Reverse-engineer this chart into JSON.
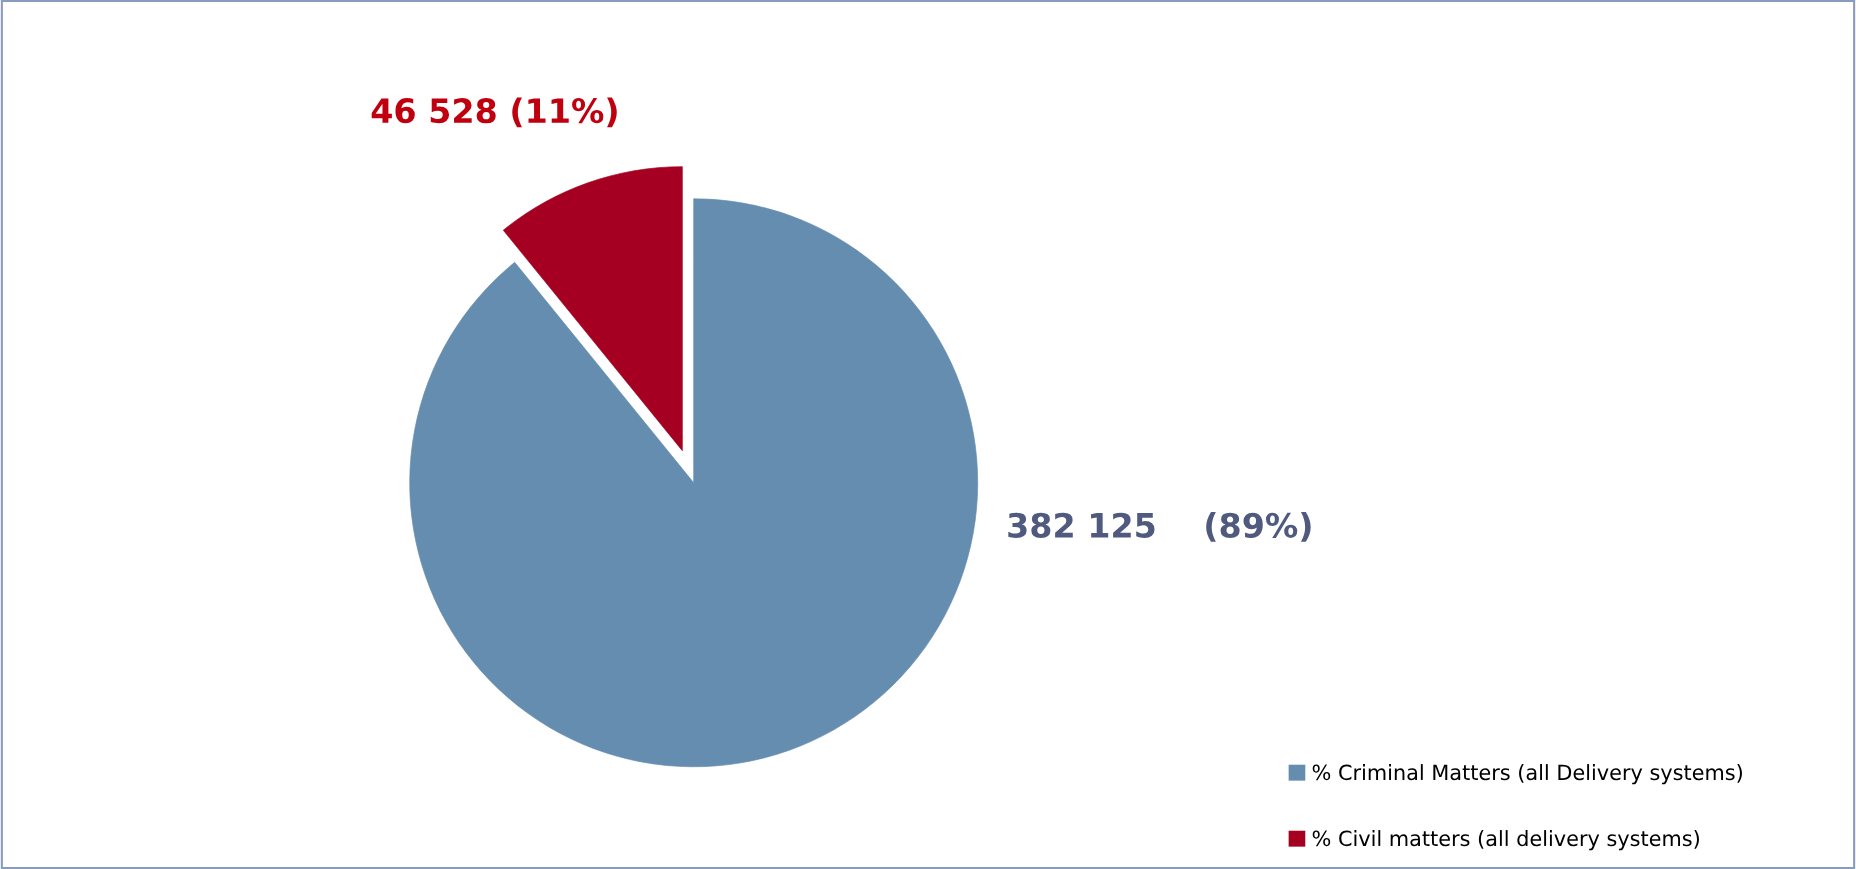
{
  "chart_data": {
    "type": "pie",
    "categories": [
      "% Criminal Matters (all Delivery systems)",
      "% Civil matters (all delivery systems)"
    ],
    "values": [
      382125,
      46528
    ],
    "colors": [
      "#658db0",
      "#a50021"
    ],
    "value_labels": [
      "382 125    (89%)",
      "46 528 (11%)"
    ],
    "legend": "bottom right"
  }
}
